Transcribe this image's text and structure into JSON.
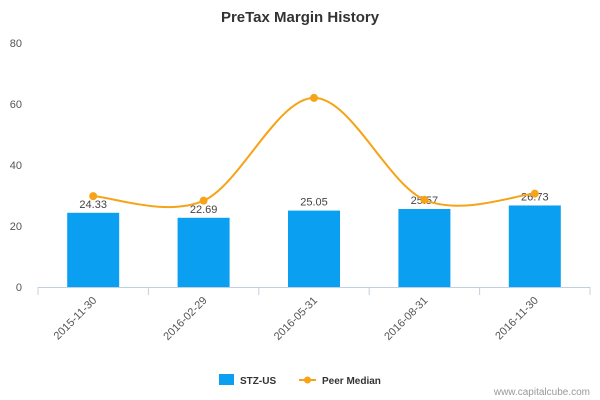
{
  "chart_data": {
    "type": "bar",
    "title": "PreTax Margin History",
    "categories": [
      "2015-11-30",
      "2016-02-29",
      "2016-05-31",
      "2016-08-31",
      "2016-11-30"
    ],
    "ylim": [
      0,
      80
    ],
    "yticks": [
      "0",
      "20",
      "40",
      "60",
      "80"
    ],
    "series": [
      {
        "name": "STZ-US",
        "kind": "bar",
        "color": "#0a9ff0",
        "values": [
          24.33,
          22.69,
          25.05,
          25.57,
          26.73
        ],
        "labels": [
          "24.33",
          "22.69",
          "25.05",
          "25.57",
          "26.73"
        ]
      },
      {
        "name": "Peer Median",
        "kind": "line",
        "color": "#f6a317",
        "values": [
          29.8,
          28.3,
          62.0,
          28.6,
          30.6
        ]
      }
    ],
    "grid": false,
    "legend": "bottom-center"
  },
  "credit": "www.capitalcube.com"
}
